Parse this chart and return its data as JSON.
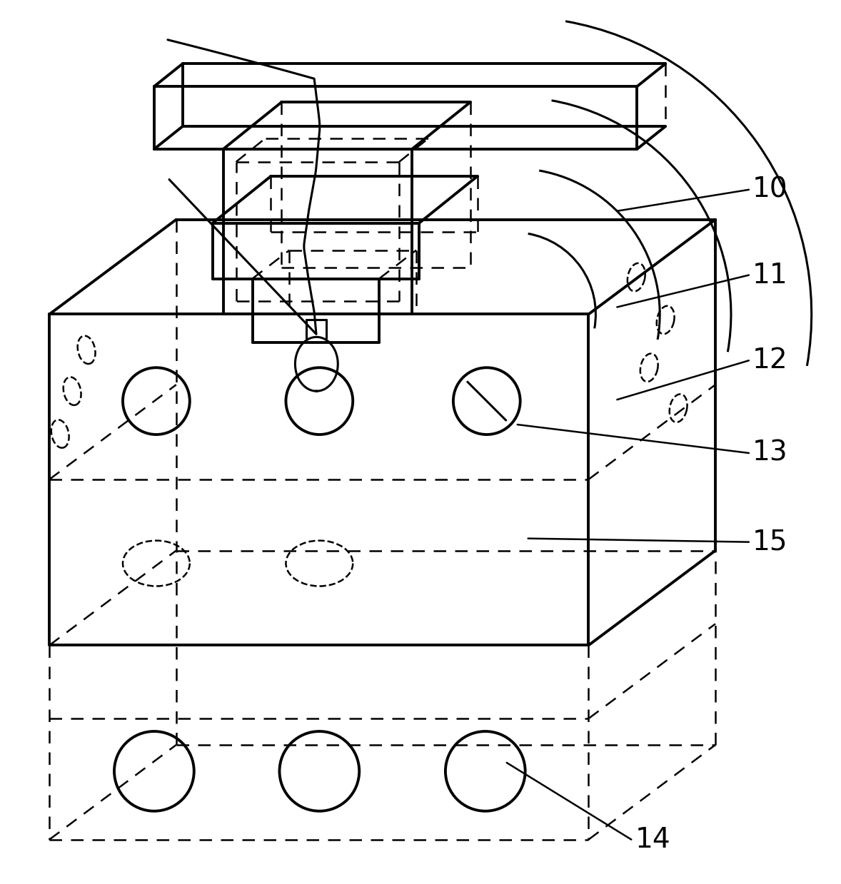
{
  "bg_color": "#ffffff",
  "lc": "#000000",
  "lw_thick": 2.8,
  "lw_main": 2.2,
  "lw_thin": 1.8,
  "lw_dash": 1.8,
  "label_fontsize": 28,
  "dash_style": [
    7,
    5
  ],
  "labels_info": [
    [
      "10",
      1055,
      265,
      865,
      295
    ],
    [
      "11",
      1055,
      385,
      865,
      430
    ],
    [
      "12",
      1055,
      505,
      865,
      560
    ],
    [
      "13",
      1055,
      635,
      725,
      595
    ],
    [
      "15",
      1055,
      760,
      740,
      755
    ],
    [
      "14",
      890,
      1178,
      710,
      1070
    ]
  ]
}
